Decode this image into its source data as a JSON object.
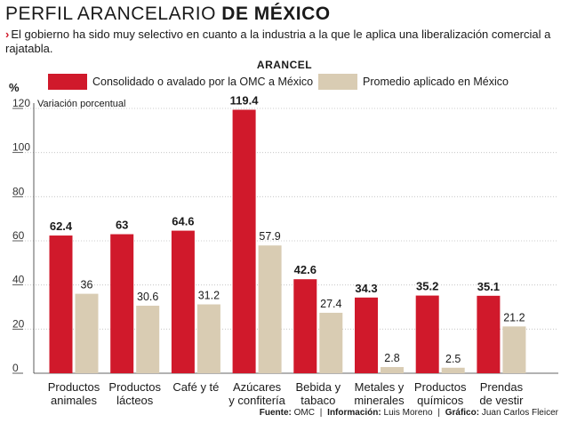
{
  "header": {
    "title_light": "PERFIL ARANCELARIO ",
    "title_bold": "DE MÉXICO",
    "subtitle": "El gobierno ha sido muy selectivo en cuanto a la industria a la que le aplica una liberalización comercial a rajatabla.",
    "subtitle_marker": "›"
  },
  "legend": {
    "section_title": "ARANCEL",
    "series_1": "Consolidado o avalado por la OMC a México",
    "series_2": "Promedio aplicado en México"
  },
  "axis": {
    "unit_symbol": "%",
    "unit_label": "Variación porcentual"
  },
  "colors": {
    "series_1": "#d0192b",
    "series_2": "#d9ccb3"
  },
  "chart_data": {
    "type": "bar",
    "title": "PERFIL ARANCELARIO DE MÉXICO",
    "ylabel": "Variación porcentual",
    "ylim": [
      0,
      120
    ],
    "yticks": [
      0,
      20,
      40,
      60,
      80,
      100,
      120
    ],
    "categories": [
      [
        "Productos",
        "animales"
      ],
      [
        "Productos",
        "lácteos"
      ],
      [
        "Café y té"
      ],
      [
        "Azúcares",
        "y confitería"
      ],
      [
        "Bebida y",
        "tabaco"
      ],
      [
        "Metales y",
        "minerales"
      ],
      [
        "Productos",
        "químicos"
      ],
      [
        "Prendas",
        "de vestir"
      ]
    ],
    "series": [
      {
        "name": "Consolidado o avalado por la OMC a México",
        "values": [
          62.4,
          63,
          64.6,
          119.4,
          42.6,
          34.3,
          35.2,
          35.1
        ],
        "labels": [
          "62.4",
          "63",
          "64.6",
          "119.4",
          "42.6",
          "34.3",
          "35.2",
          "35.1"
        ]
      },
      {
        "name": "Promedio aplicado en México",
        "values": [
          36,
          30.6,
          31.2,
          57.9,
          27.4,
          2.8,
          2.5,
          21.2
        ],
        "labels": [
          "36",
          "30.6",
          "31.2",
          "57.9",
          "27.4",
          "2.8",
          "2.5",
          "21.2"
        ]
      }
    ]
  },
  "footer": {
    "source_label": "Fuente:",
    "source_value": "OMC",
    "info_label": "Información:",
    "info_value": "Luis Moreno",
    "graphic_label": "Gráfico:",
    "graphic_value": "Juan Carlos Fleicer"
  }
}
